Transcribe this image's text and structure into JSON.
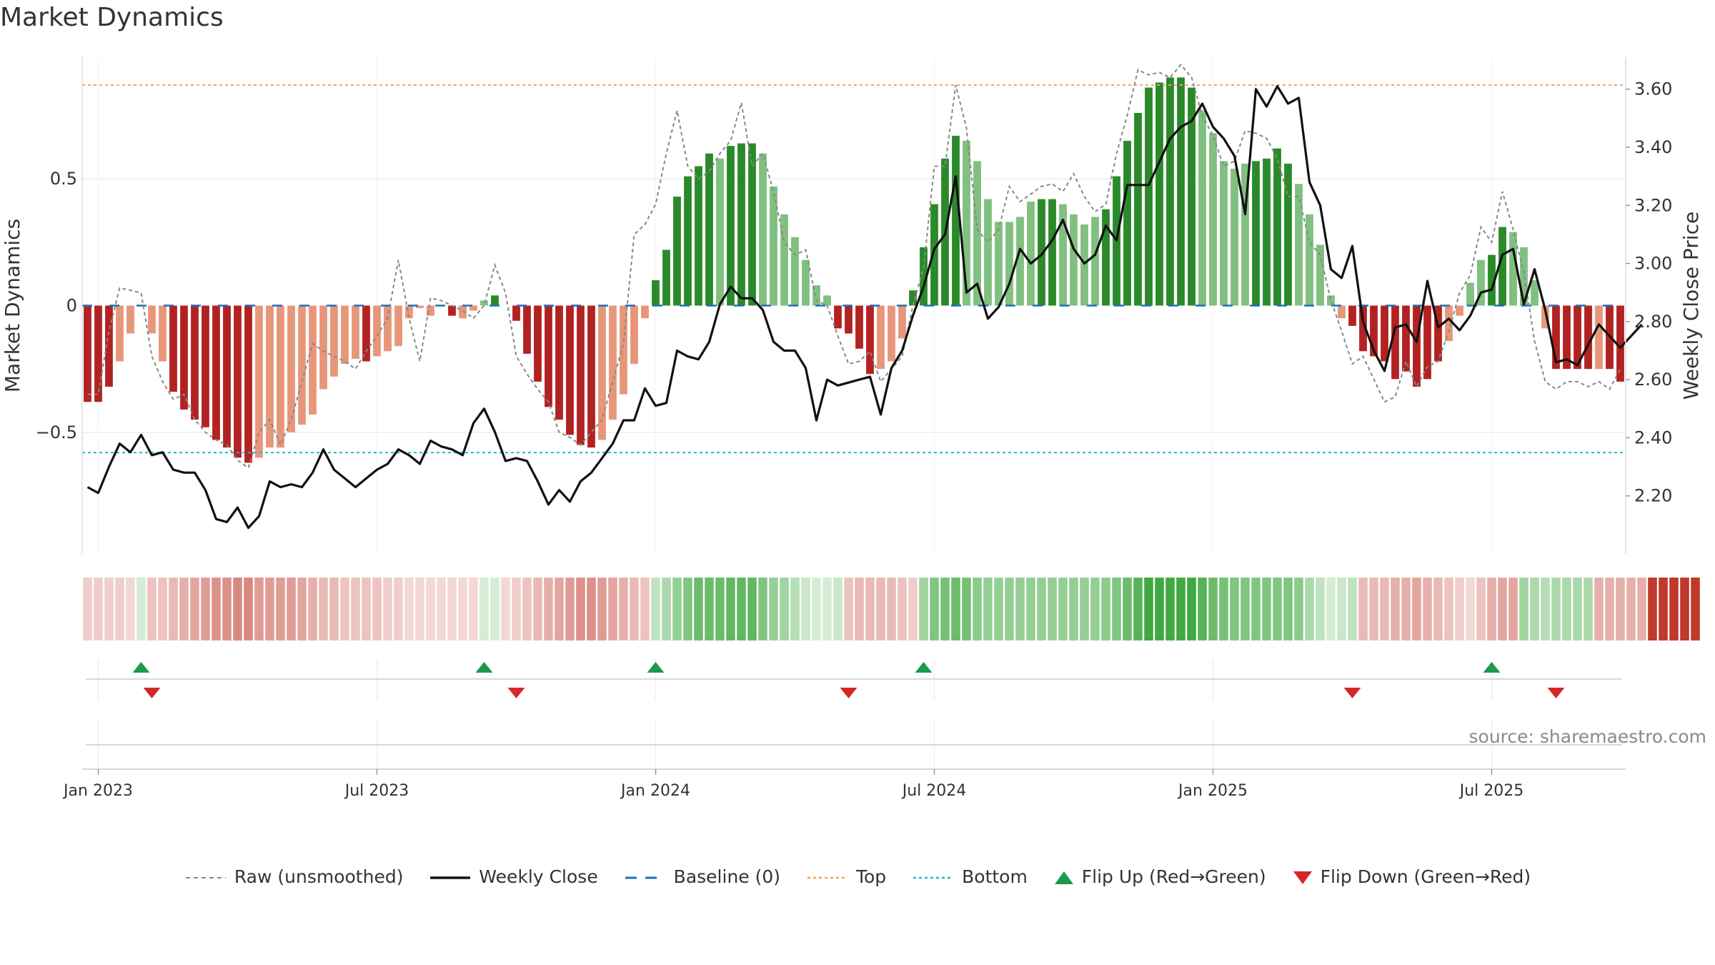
{
  "title": "Market Dynamics",
  "source": "source: sharemaestro.com",
  "colors": {
    "strong_green": "#2a8a2a",
    "light_green": "#80c080",
    "strong_red": "#b22222",
    "light_red": "#e8967a",
    "price_line": "#111111",
    "raw_line": "#888888",
    "baseline": "#1f6fb4",
    "top": "#f4a460",
    "bottom": "#17becf",
    "flip_up": "#1a9a4a",
    "flip_down": "#d62728"
  },
  "chart_data": {
    "type": "bar",
    "ylabel": "Market Dynamics",
    "y2label": "Weekly Close Price",
    "ylim": [
      -0.98,
      0.98
    ],
    "y2lim": [
      2.0,
      3.71
    ],
    "yticks": [
      "0.5",
      "0",
      "−0.5"
    ],
    "y2ticks": [
      "3.60",
      "3.40",
      "3.20",
      "3.00",
      "2.80",
      "2.60",
      "2.40",
      "2.20"
    ],
    "x_ticks": [
      "Jan 2023",
      "Jul 2023",
      "Jan 2024",
      "Jul 2024",
      "Jan 2025",
      "Jul 2025"
    ],
    "x_tick_index": [
      1.5,
      27.5,
      53.5,
      79.5,
      105.5,
      131.5
    ],
    "top_line": 0.87,
    "bottom_line": -0.58,
    "bar_values": [
      -0.38,
      -0.38,
      -0.32,
      -0.22,
      -0.11,
      0.0,
      -0.11,
      -0.22,
      -0.34,
      -0.41,
      -0.45,
      -0.48,
      -0.53,
      -0.56,
      -0.6,
      -0.62,
      -0.6,
      -0.56,
      -0.56,
      -0.5,
      -0.47,
      -0.43,
      -0.33,
      -0.28,
      -0.23,
      -0.21,
      -0.22,
      -0.2,
      -0.18,
      -0.16,
      -0.05,
      -0.01,
      -0.04,
      0.0,
      -0.04,
      -0.05,
      -0.02,
      0.02,
      0.04,
      0.0,
      -0.06,
      -0.19,
      -0.3,
      -0.4,
      -0.45,
      -0.51,
      -0.55,
      -0.56,
      -0.53,
      -0.45,
      -0.35,
      -0.23,
      -0.05,
      0.1,
      0.22,
      0.43,
      0.51,
      0.55,
      0.6,
      0.58,
      0.63,
      0.64,
      0.64,
      0.6,
      0.47,
      0.36,
      0.27,
      0.18,
      0.08,
      0.04,
      -0.09,
      -0.11,
      -0.17,
      -0.27,
      -0.25,
      -0.22,
      -0.13,
      0.06,
      0.23,
      0.4,
      0.58,
      0.67,
      0.65,
      0.57,
      0.42,
      0.33,
      0.33,
      0.35,
      0.41,
      0.42,
      0.42,
      0.4,
      0.36,
      0.32,
      0.35,
      0.38,
      0.51,
      0.65,
      0.76,
      0.86,
      0.88,
      0.9,
      0.9,
      0.86,
      0.77,
      0.68,
      0.57,
      0.54,
      0.56,
      0.57,
      0.58,
      0.62,
      0.56,
      0.48,
      0.36,
      0.24,
      0.04,
      -0.05,
      -0.08,
      -0.18,
      -0.2,
      -0.22,
      -0.29,
      -0.26,
      -0.32,
      -0.29,
      -0.22,
      -0.14,
      -0.04,
      0.09,
      0.18,
      0.2,
      0.31,
      0.29,
      0.23,
      0.1,
      -0.09,
      -0.25,
      -0.25,
      -0.25,
      -0.25,
      -0.25,
      -0.25,
      -0.3
    ],
    "strength": [
      3,
      3,
      3,
      2,
      1,
      1,
      2,
      2,
      3,
      3,
      3,
      3,
      3,
      3,
      3,
      3,
      2,
      2,
      2,
      2,
      2,
      2,
      2,
      2,
      2,
      2,
      3,
      2,
      2,
      2,
      2,
      1,
      2,
      2,
      3,
      2,
      2,
      2,
      3,
      2,
      3,
      3,
      3,
      3,
      3,
      3,
      3,
      3,
      2,
      2,
      2,
      2,
      2,
      3,
      3,
      3,
      3,
      3,
      3,
      2,
      3,
      3,
      3,
      2,
      2,
      2,
      2,
      2,
      2,
      2,
      3,
      3,
      3,
      3,
      2,
      2,
      2,
      3,
      3,
      3,
      3,
      3,
      2,
      2,
      2,
      2,
      2,
      2,
      2,
      3,
      3,
      2,
      2,
      2,
      2,
      3,
      3,
      3,
      3,
      3,
      3,
      3,
      3,
      3,
      2,
      2,
      2,
      2,
      2,
      3,
      3,
      3,
      3,
      2,
      2,
      2,
      2,
      2,
      3,
      3,
      3,
      3,
      3,
      3,
      3,
      3,
      3,
      2,
      2,
      2,
      2,
      3,
      3,
      2,
      2,
      2,
      2,
      3,
      3,
      3,
      3,
      2,
      3,
      3,
      3,
      3
    ],
    "raw_values": [
      -0.35,
      -0.35,
      -0.1,
      0.07,
      0.06,
      0.05,
      -0.2,
      -0.3,
      -0.37,
      -0.35,
      -0.45,
      -0.5,
      -0.53,
      -0.55,
      -0.61,
      -0.64,
      -0.5,
      -0.45,
      -0.55,
      -0.45,
      -0.3,
      -0.15,
      -0.18,
      -0.2,
      -0.22,
      -0.25,
      -0.18,
      -0.12,
      -0.05,
      0.18,
      -0.05,
      -0.22,
      0.03,
      0.02,
      0.0,
      -0.02,
      -0.05,
      0.0,
      0.16,
      0.05,
      -0.2,
      -0.27,
      -0.33,
      -0.38,
      -0.5,
      -0.52,
      -0.55,
      -0.5,
      -0.45,
      -0.3,
      -0.15,
      0.28,
      0.32,
      0.4,
      0.6,
      0.77,
      0.55,
      0.5,
      0.53,
      0.6,
      0.65,
      0.8,
      0.55,
      0.6,
      0.45,
      0.25,
      0.2,
      0.22,
      0.02,
      0.0,
      -0.12,
      -0.23,
      -0.22,
      -0.18,
      -0.3,
      -0.25,
      -0.2,
      0.0,
      0.15,
      0.55,
      0.55,
      0.87,
      0.7,
      0.3,
      0.25,
      0.3,
      0.47,
      0.41,
      0.44,
      0.47,
      0.48,
      0.45,
      0.52,
      0.43,
      0.37,
      0.4,
      0.6,
      0.75,
      0.93,
      0.91,
      0.92,
      0.9,
      0.95,
      0.9,
      0.75,
      0.67,
      0.55,
      0.57,
      0.69,
      0.68,
      0.66,
      0.58,
      0.43,
      0.43,
      0.25,
      0.2,
      0.02,
      -0.1,
      -0.23,
      -0.2,
      -0.29,
      -0.38,
      -0.36,
      -0.22,
      -0.32,
      -0.24,
      -0.22,
      -0.1,
      0.05,
      0.12,
      0.31,
      0.25,
      0.45,
      0.3,
      0.13,
      -0.14,
      -0.3,
      -0.33,
      -0.3,
      -0.3,
      -0.32,
      -0.3,
      -0.33,
      -0.25
    ],
    "close_prices": [
      2.23,
      2.21,
      2.3,
      2.38,
      2.35,
      2.41,
      2.34,
      2.35,
      2.29,
      2.28,
      2.28,
      2.22,
      2.12,
      2.11,
      2.16,
      2.09,
      2.13,
      2.25,
      2.23,
      2.24,
      2.23,
      2.28,
      2.36,
      2.29,
      2.26,
      2.23,
      2.26,
      2.29,
      2.31,
      2.36,
      2.34,
      2.31,
      2.39,
      2.37,
      2.36,
      2.34,
      2.45,
      2.5,
      2.42,
      2.32,
      2.33,
      2.32,
      2.25,
      2.17,
      2.22,
      2.18,
      2.25,
      2.28,
      2.33,
      2.38,
      2.46,
      2.46,
      2.57,
      2.51,
      2.52,
      2.7,
      2.68,
      2.67,
      2.73,
      2.86,
      2.92,
      2.88,
      2.88,
      2.84,
      2.73,
      2.7,
      2.7,
      2.64,
      2.46,
      2.6,
      2.58,
      2.59,
      2.6,
      2.61,
      2.48,
      2.64,
      2.7,
      2.82,
      2.92,
      3.05,
      3.1,
      3.3,
      2.9,
      2.93,
      2.81,
      2.85,
      2.93,
      3.05,
      3.0,
      3.03,
      3.08,
      3.15,
      3.05,
      3.0,
      3.03,
      3.13,
      3.08,
      3.27,
      3.27,
      3.27,
      3.35,
      3.43,
      3.47,
      3.49,
      3.55,
      3.47,
      3.43,
      3.37,
      3.17,
      3.6,
      3.54,
      3.61,
      3.55,
      3.57,
      3.28,
      3.2,
      2.98,
      2.95,
      3.06,
      2.8,
      2.7,
      2.63,
      2.78,
      2.79,
      2.73,
      2.94,
      2.78,
      2.81,
      2.77,
      2.82,
      2.9,
      2.91,
      3.03,
      3.05,
      2.86,
      2.98,
      2.84,
      2.66,
      2.67,
      2.65,
      2.72,
      2.79,
      2.75,
      2.71,
      2.75,
      2.79
    ],
    "strip": [
      1,
      1,
      1,
      1,
      1,
      0,
      1,
      1,
      1,
      1,
      1,
      1,
      1,
      1,
      1,
      1,
      1,
      1,
      1,
      1,
      1,
      1,
      1,
      1,
      1,
      1,
      1,
      1,
      1,
      1,
      1,
      1,
      1,
      1,
      1,
      1,
      1,
      0,
      0,
      1,
      1,
      1,
      1,
      1,
      1,
      1,
      1,
      1,
      1,
      1,
      1,
      1,
      1,
      0,
      0,
      0,
      0,
      0,
      0,
      0,
      0,
      0,
      0,
      0,
      0,
      0,
      0,
      0,
      0,
      0,
      0,
      1,
      1,
      1,
      1,
      1,
      1,
      1,
      0,
      0,
      0,
      0,
      0,
      0,
      0,
      0,
      0,
      0,
      0,
      0,
      0,
      0,
      0,
      0,
      0,
      0,
      0,
      0,
      0,
      0,
      0,
      0,
      0,
      0,
      0,
      0,
      0,
      0,
      0,
      0,
      0,
      0,
      0,
      0,
      0,
      0,
      0,
      0,
      0,
      1,
      1,
      1,
      1,
      1,
      1,
      1,
      1,
      1,
      1,
      1,
      1,
      1,
      1,
      1,
      0,
      0,
      0,
      0,
      0,
      0,
      0,
      1,
      1,
      1,
      1,
      1,
      1,
      1,
      1,
      1,
      1
    ],
    "strip_alpha": [
      0.25,
      0.25,
      0.25,
      0.25,
      0.2,
      0.2,
      0.3,
      0.3,
      0.35,
      0.4,
      0.45,
      0.5,
      0.55,
      0.55,
      0.6,
      0.6,
      0.5,
      0.5,
      0.5,
      0.5,
      0.45,
      0.4,
      0.35,
      0.35,
      0.3,
      0.3,
      0.3,
      0.3,
      0.25,
      0.25,
      0.2,
      0.2,
      0.2,
      0.2,
      0.2,
      0.2,
      0.2,
      0.2,
      0.2,
      0.2,
      0.25,
      0.3,
      0.35,
      0.4,
      0.45,
      0.5,
      0.55,
      0.55,
      0.5,
      0.45,
      0.4,
      0.35,
      0.3,
      0.3,
      0.4,
      0.5,
      0.6,
      0.7,
      0.7,
      0.7,
      0.75,
      0.75,
      0.75,
      0.6,
      0.5,
      0.45,
      0.35,
      0.25,
      0.2,
      0.2,
      0.25,
      0.3,
      0.35,
      0.35,
      0.35,
      0.35,
      0.3,
      0.25,
      0.45,
      0.6,
      0.65,
      0.7,
      0.65,
      0.55,
      0.5,
      0.5,
      0.5,
      0.5,
      0.5,
      0.5,
      0.5,
      0.5,
      0.5,
      0.5,
      0.5,
      0.55,
      0.6,
      0.7,
      0.8,
      0.9,
      0.9,
      0.9,
      0.9,
      0.9,
      0.8,
      0.7,
      0.65,
      0.6,
      0.6,
      0.6,
      0.6,
      0.6,
      0.6,
      0.55,
      0.4,
      0.3,
      0.2,
      0.25,
      0.3,
      0.35,
      0.35,
      0.35,
      0.4,
      0.4,
      0.45,
      0.4,
      0.35,
      0.3,
      0.25,
      0.2,
      0.3,
      0.4,
      0.45,
      0.45,
      0.45,
      0.4,
      0.35,
      0.4,
      0.4,
      0.4,
      0.4,
      0.4,
      0.4,
      0.4,
      0.4,
      0.4
    ],
    "flip_up_index": [
      5,
      37,
      53,
      78,
      131
    ],
    "flip_down_index": [
      6,
      40,
      71,
      118,
      137
    ],
    "legend": [
      "Raw (unsmoothed)",
      "Weekly Close",
      "Baseline (0)",
      "Top",
      "Bottom",
      "Flip Up (Red→Green)",
      "Flip Down (Green→Red)"
    ]
  }
}
